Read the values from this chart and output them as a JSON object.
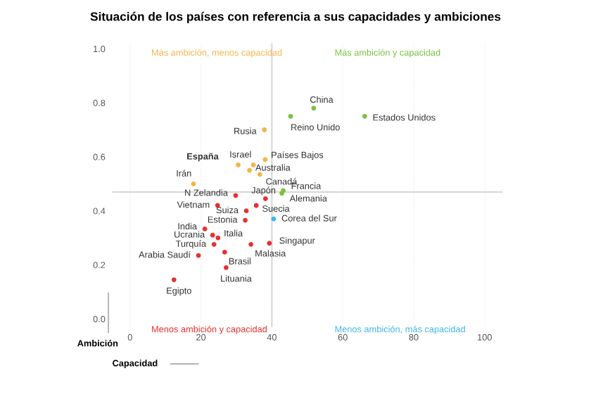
{
  "chart_data": {
    "type": "scatter",
    "title": "Situación de los países con referencia a sus capacidades y ambiciones",
    "xlabel": "Capacidad",
    "ylabel": "Ambición",
    "xlim": [
      -5,
      105
    ],
    "ylim": [
      -0.03,
      1.02
    ],
    "xticks": [
      0,
      20,
      40,
      60,
      80,
      100
    ],
    "yticks": [
      {
        "value": 0,
        "label": "0.0"
      },
      {
        "value": 0.2,
        "label": "0.2"
      },
      {
        "value": 0.4,
        "label": "0.4"
      },
      {
        "value": 0.6,
        "label": "0.6"
      },
      {
        "value": 0.8,
        "label": "0.8"
      },
      {
        "value": 1,
        "label": "1.0"
      }
    ],
    "grid": "x",
    "marker": "circle",
    "ref_lines": [
      {
        "axis": "x",
        "value": 40,
        "color": "#d9d9d9"
      },
      {
        "axis": "y",
        "value": 0.47,
        "color": "#d9d9d9"
      }
    ],
    "series": [
      {
        "color": "#7cc142",
        "x": [
          51.8,
          45.3,
          66.2,
          43.2,
          42.8
        ],
        "values": [
          0.78,
          0.75,
          0.75,
          0.475,
          0.465
        ]
      },
      {
        "color": "#f3b54a",
        "x": [
          37.9,
          34.8,
          38.1,
          30.5,
          33.7,
          36.6,
          17.9
        ],
        "values": [
          0.7,
          0.57,
          0.59,
          0.57,
          0.55,
          0.535,
          0.5
        ]
      },
      {
        "color": "#e8312f",
        "x": [
          29.8,
          38.2,
          24.7,
          32.8,
          35.6,
          32.5,
          21.1,
          23.3,
          24.8,
          23.7,
          39.3,
          34.1,
          26.7,
          19.3,
          27.1,
          12.4
        ],
        "values": [
          0.457,
          0.445,
          0.42,
          0.4,
          0.42,
          0.365,
          0.333,
          0.31,
          0.3,
          0.276,
          0.28,
          0.276,
          0.247,
          0.235,
          0.19,
          0.145
        ]
      },
      {
        "color": "#3fb6e8",
        "x": [
          40.5
        ],
        "values": [
          0.37
        ]
      }
    ],
    "annotations": [
      "Más ambición, menos capacidad",
      "Más ambición y capacidad",
      "Menos ambición y capacidad",
      "Menos ambición, más capacidad",
      {
        "text": "China",
        "x": 51.8,
        "y": 0.78
      },
      {
        "text": "Reino Unido",
        "x": 45.3,
        "y": 0.75
      },
      {
        "text": "Estados Unidos",
        "x": 66.2,
        "y": 0.75
      },
      {
        "text": "Francia",
        "x": 43.2,
        "y": 0.475
      },
      {
        "text": "Alemania",
        "x": 42.8,
        "y": 0.465
      },
      {
        "text": "Rusia",
        "x": 37.9,
        "y": 0.7
      },
      {
        "text": "Israel",
        "x": 34.8,
        "y": 0.57
      },
      {
        "text": "Países Bajos",
        "x": 38.1,
        "y": 0.59
      },
      {
        "text": "España",
        "x": 30.5,
        "y": 0.57
      },
      {
        "text": "Australia",
        "x": 33.7,
        "y": 0.55
      },
      {
        "text": "Canadá",
        "x": 36.6,
        "y": 0.535
      },
      {
        "text": "Irán",
        "x": 17.9,
        "y": 0.5
      },
      {
        "text": "N Zelandia",
        "x": 29.8,
        "y": 0.457
      },
      {
        "text": "Japón",
        "x": 38.2,
        "y": 0.445
      },
      {
        "text": "Vietnam",
        "x": 24.7,
        "y": 0.42
      },
      {
        "text": "Suiza",
        "x": 32.8,
        "y": 0.4
      },
      {
        "text": "Suecia",
        "x": 35.6,
        "y": 0.42
      },
      {
        "text": "Estonia",
        "x": 32.5,
        "y": 0.365
      },
      {
        "text": "India",
        "x": 21.1,
        "y": 0.333
      },
      {
        "text": "Ucrania",
        "x": 23.3,
        "y": 0.31
      },
      {
        "text": "Italia",
        "x": 24.8,
        "y": 0.3
      },
      {
        "text": "Turquía",
        "x": 23.7,
        "y": 0.276
      },
      {
        "text": "Singapur",
        "x": 39.3,
        "y": 0.28
      },
      {
        "text": "Malasia",
        "x": 34.1,
        "y": 0.276
      },
      {
        "text": "Brasil",
        "x": 26.7,
        "y": 0.247
      },
      {
        "text": "Arabia Saudí",
        "x": 19.3,
        "y": 0.235
      },
      {
        "text": "Lituania",
        "x": 27.1,
        "y": 0.19
      },
      {
        "text": "Egipto",
        "x": 12.4,
        "y": 0.145
      },
      {
        "text": "Corea del Sur",
        "x": 40.5,
        "y": 0.37
      }
    ]
  }
}
